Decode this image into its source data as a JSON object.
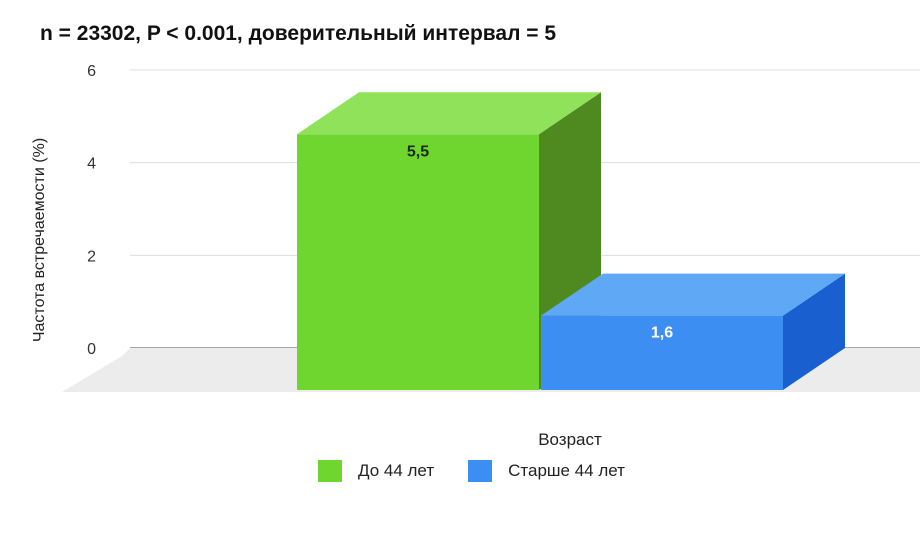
{
  "chart_data": {
    "type": "bar",
    "title": "n = 23302, P < 0.001, доверительный интервал = 5",
    "xlabel": "Возраст",
    "ylabel": "Частота встречаемости (%)",
    "ylim": [
      0,
      6
    ],
    "yticks": [
      "0",
      "2",
      "4",
      "6"
    ],
    "grid": true,
    "legend_position": "bottom",
    "series": [
      {
        "name": "До 44 лет",
        "value": 5.5,
        "label": "5,5",
        "color": "#6ed62f",
        "side_color": "#4f8a20",
        "top_color": "#8fe25a"
      },
      {
        "name": "Старше 44 лет",
        "value": 1.6,
        "label": "1,6",
        "color": "#3d8ef2",
        "side_color": "#1a5fd0",
        "top_color": "#5fa8f6"
      }
    ]
  }
}
